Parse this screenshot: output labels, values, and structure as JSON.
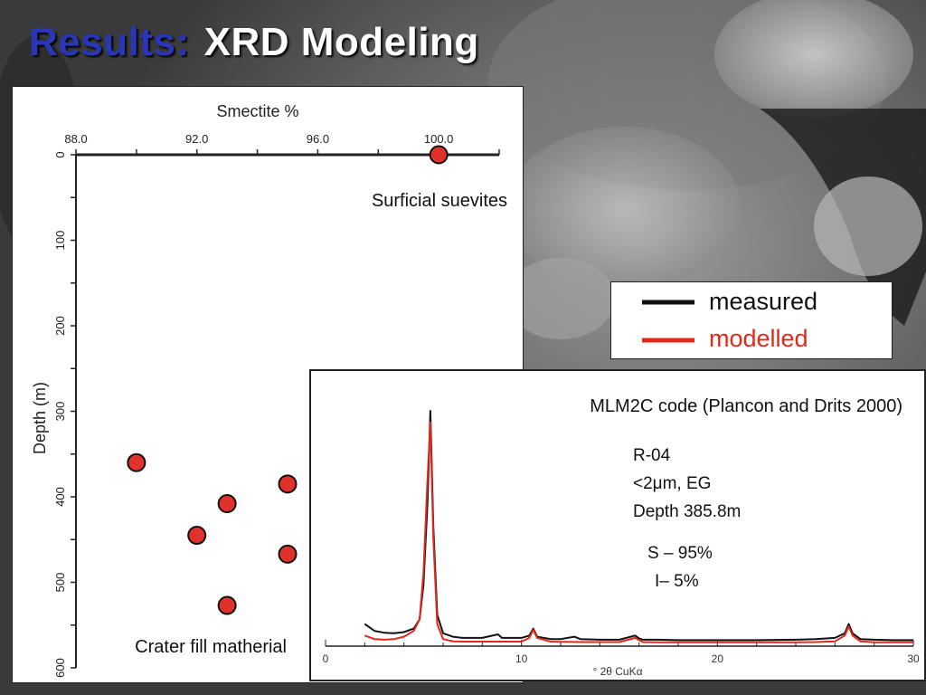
{
  "slide": {
    "title_prefix": "Results:",
    "title_main": "XRD Modeling"
  },
  "colors": {
    "title_accent": "#2a36b8",
    "measured_line": "#111111",
    "modelled_line": "#e2281b",
    "point_fill": "#e0322a"
  },
  "chart_data": [
    {
      "type": "scatter",
      "title": "Smectite %",
      "xlabel": "Smectite %",
      "ylabel": "Depth (m)",
      "xlim": [
        88.0,
        102.0
      ],
      "ylim": [
        0,
        600
      ],
      "y_inverted": true,
      "x_ticks": [
        "88.0",
        "92.0",
        "96.0",
        "100.0"
      ],
      "y_ticks": [
        "0",
        "100",
        "200",
        "300",
        "400",
        "500",
        "600"
      ],
      "points": [
        {
          "x": 100.0,
          "y": 0
        },
        {
          "x": 90.0,
          "y": 360
        },
        {
          "x": 95.0,
          "y": 385
        },
        {
          "x": 93.0,
          "y": 408
        },
        {
          "x": 92.0,
          "y": 445
        },
        {
          "x": 95.0,
          "y": 467
        },
        {
          "x": 93.0,
          "y": 527
        }
      ],
      "annotations": [
        "Surficial suevites",
        "Crater fill matherial"
      ]
    },
    {
      "type": "line",
      "title": "MLM2C code (Plancon and Drits 2000)",
      "xlabel": "° 2θ CuKα",
      "xlim": [
        0,
        30
      ],
      "x_ticks": [
        "0",
        "10",
        "20",
        "30"
      ],
      "legend": [
        "measured",
        "modelled"
      ],
      "legend_position": "top-right",
      "series": [
        {
          "name": "measured",
          "x": [
            2,
            2.5,
            3,
            3.5,
            4,
            4.5,
            4.8,
            5.0,
            5.2,
            5.35,
            5.5,
            5.7,
            6.0,
            6.5,
            7,
            8,
            8.8,
            9,
            10,
            10.4,
            10.6,
            10.8,
            11.5,
            12,
            12.7,
            13,
            14,
            15,
            15.8,
            16,
            16.2,
            17,
            18,
            20,
            22,
            24,
            25,
            26,
            26.5,
            26.7,
            26.9,
            27.3,
            28,
            29,
            30
          ],
          "y": [
            0.08,
            0.05,
            0.042,
            0.04,
            0.045,
            0.06,
            0.1,
            0.25,
            0.6,
            1.0,
            0.5,
            0.12,
            0.04,
            0.025,
            0.02,
            0.02,
            0.035,
            0.02,
            0.02,
            0.03,
            0.06,
            0.025,
            0.015,
            0.015,
            0.025,
            0.015,
            0.012,
            0.012,
            0.03,
            0.018,
            0.012,
            0.012,
            0.01,
            0.01,
            0.01,
            0.012,
            0.015,
            0.02,
            0.04,
            0.08,
            0.04,
            0.015,
            0.012,
            0.01,
            0.01
          ]
        },
        {
          "name": "modelled",
          "x": [
            2,
            2.5,
            3,
            3.5,
            4,
            4.5,
            4.8,
            5.0,
            5.2,
            5.35,
            5.5,
            5.7,
            6.0,
            6.5,
            7,
            8,
            9,
            10,
            10.4,
            10.6,
            10.8,
            11.5,
            12,
            13,
            14,
            15,
            15.8,
            16,
            16.2,
            17,
            18,
            20,
            22,
            24,
            25,
            26,
            26.5,
            26.7,
            26.9,
            27.3,
            28,
            29,
            30
          ],
          "y": [
            0.03,
            0.015,
            0.012,
            0.015,
            0.025,
            0.05,
            0.1,
            0.3,
            0.7,
            0.95,
            0.45,
            0.08,
            0.015,
            0.005,
            0.004,
            0.004,
            0.004,
            0.004,
            0.02,
            0.055,
            0.02,
            0.004,
            0.003,
            0.002,
            0.002,
            0.002,
            0.02,
            0.01,
            0.002,
            0.001,
            0.001,
            0.001,
            0.001,
            0.001,
            0.002,
            0.005,
            0.03,
            0.07,
            0.03,
            0.005,
            0.001,
            0.001,
            0.001
          ]
        }
      ],
      "sample_info": {
        "sample": "R-04",
        "fraction": "<2μm, EG",
        "depth": "Depth 385.8m",
        "smectite": "S – 95%",
        "illite": "I– 5%"
      }
    }
  ]
}
